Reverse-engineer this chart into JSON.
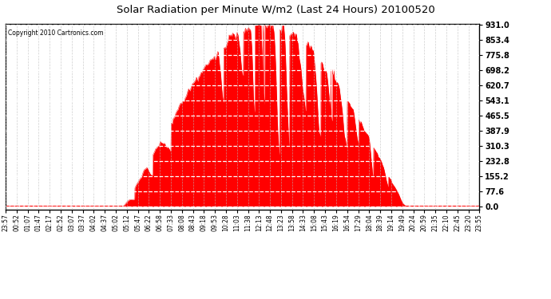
{
  "title": "Solar Radiation per Minute W/m2 (Last 24 Hours) 20100520",
  "copyright_text": "Copyright 2010 Cartronics.com",
  "y_ticks": [
    0.0,
    77.6,
    155.2,
    232.8,
    310.3,
    387.9,
    465.5,
    543.1,
    620.7,
    698.2,
    775.8,
    853.4,
    931.0
  ],
  "y_max": 931.0,
  "y_min": 0.0,
  "fill_color": "#FF0000",
  "line_color": "#FF0000",
  "dashed_line_color": "#FF0000",
  "grid_color": "#BBBBBB",
  "background_color": "#FFFFFF",
  "border_color": "#000000",
  "x_labels": [
    "23:57",
    "00:52",
    "01:07",
    "01:47",
    "02:17",
    "02:52",
    "03:07",
    "03:37",
    "04:02",
    "04:37",
    "05:02",
    "05:12",
    "05:47",
    "06:22",
    "06:58",
    "07:33",
    "08:08",
    "08:43",
    "09:18",
    "09:53",
    "10:28",
    "11:03",
    "11:38",
    "12:13",
    "12:48",
    "13:23",
    "13:58",
    "14:33",
    "15:08",
    "15:43",
    "16:19",
    "16:54",
    "17:29",
    "18:04",
    "18:39",
    "19:14",
    "19:49",
    "20:24",
    "20:59",
    "21:35",
    "22:10",
    "22:45",
    "23:20",
    "23:55"
  ],
  "num_points": 1440,
  "sunrise_min": 355,
  "sunset_min": 1215,
  "solar_noon_min": 795
}
